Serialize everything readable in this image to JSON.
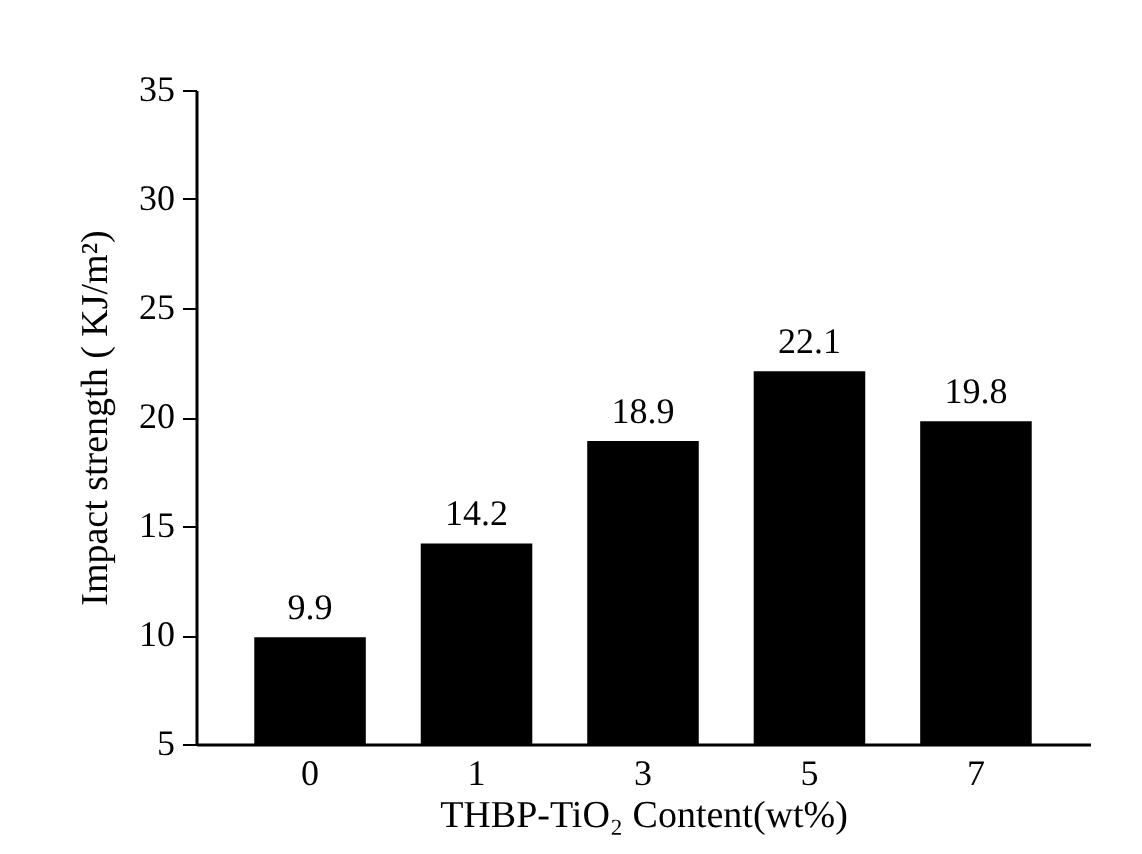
{
  "chart_data": {
    "type": "bar",
    "xlabel": "THBP-TiO₂ Content(wt%)",
    "ylabel": "Impact strength ( KJ/m²)",
    "categories": [
      "0",
      "1",
      "3",
      "5",
      "7"
    ],
    "values": [
      9.9,
      14.2,
      18.9,
      22.1,
      19.8
    ],
    "color": "#000000",
    "ylim": [
      5,
      35
    ],
    "yticks": [
      5,
      10,
      15,
      20,
      25,
      30,
      35
    ],
    "grid": false,
    "data_labels": true
  }
}
